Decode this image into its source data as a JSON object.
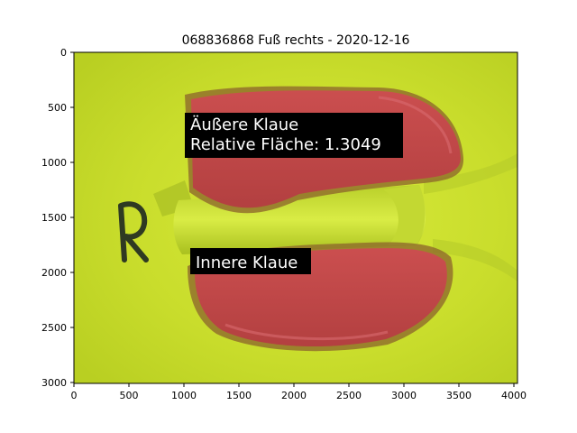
{
  "figure": {
    "title": "068836868 Fuß rechts - 2020-12-16"
  },
  "axes": {
    "x_ticks": [
      "0",
      "500",
      "1000",
      "1500",
      "2000",
      "2500",
      "3000",
      "3500",
      "4000"
    ],
    "y_ticks": [
      "0",
      "500",
      "1000",
      "1500",
      "2000",
      "2500",
      "3000"
    ],
    "xlim": [
      0,
      4032
    ],
    "ylim": [
      3024,
      0
    ]
  },
  "annotations": {
    "outer_claw": {
      "line1": "Äußere Klaue",
      "line2": "Relative Fläche: 1.3049"
    },
    "inner_claw": {
      "line1": "Innere Klaue"
    }
  },
  "colors": {
    "background_mat": "#cfe22e",
    "claw_overlay": "#c5414a",
    "label_box": "#000000",
    "label_text": "#ffffff"
  }
}
